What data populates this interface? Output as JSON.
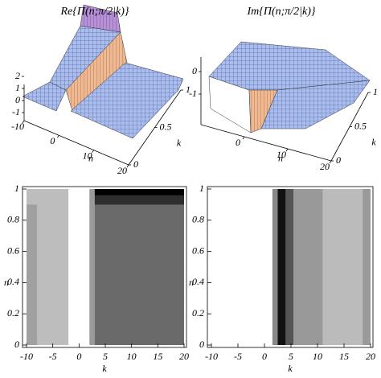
{
  "chart_data": [
    {
      "type": "surface3d",
      "title": "Re{Π(n;π/2|k)}",
      "xlabel": "n",
      "ylabel": "k",
      "xlim": [
        -10,
        20
      ],
      "ylim": [
        0,
        1
      ],
      "zlim": [
        -1,
        2
      ],
      "xticks": [
        -10,
        0,
        10,
        20
      ],
      "yticks": [
        0,
        0.5,
        1
      ],
      "zticks": [
        -1,
        0,
        1,
        2
      ]
    },
    {
      "type": "surface3d",
      "title": "Im{Π(n;π/2|k)}",
      "xlabel": "n",
      "ylabel": "k",
      "xlim": [
        -10,
        20
      ],
      "ylim": [
        0,
        1
      ],
      "zlim": [
        -2,
        1
      ],
      "xticks": [
        0,
        10,
        20
      ],
      "yticks": [
        0,
        0.5,
        1
      ],
      "zticks": [
        -1,
        0
      ]
    },
    {
      "type": "contour",
      "xlabel": "k",
      "ylabel": "n",
      "xlim": [
        -10,
        20
      ],
      "ylim": [
        0,
        1
      ],
      "xticks": [
        -10,
        -5,
        0,
        5,
        10,
        15,
        20
      ],
      "yticks": [
        0,
        0.2,
        0.4,
        0.6,
        0.8,
        1
      ],
      "regions": [
        {
          "x0": -10,
          "x1": -2,
          "y0": 0,
          "y1": 1,
          "color": "#bdbdbd"
        },
        {
          "x0": -10,
          "x1": -8,
          "y0": 0,
          "y1": 0.9,
          "color": "#a0a0a0"
        },
        {
          "x0": -2,
          "x1": 2,
          "y0": 0,
          "y1": 1,
          "color": "#ffffff"
        },
        {
          "x0": 2,
          "x1": 20,
          "y0": 0,
          "y1": 1,
          "color": "#6a6a6a"
        },
        {
          "x0": 2,
          "x1": 3,
          "y0": 0,
          "y1": 1,
          "color": "#9a9a9a"
        },
        {
          "x0": 3,
          "x1": 20,
          "y0": 0.9,
          "y1": 1,
          "color": "#2e2e2e"
        },
        {
          "x0": 3,
          "x1": 20,
          "y0": 0.96,
          "y1": 1,
          "color": "#000000"
        }
      ]
    },
    {
      "type": "contour",
      "xlabel": "k",
      "ylabel": "n",
      "xlim": [
        -10,
        20
      ],
      "ylim": [
        0,
        1
      ],
      "xticks": [
        -10,
        -5,
        0,
        5,
        10,
        15,
        20
      ],
      "yticks": [
        0,
        0.2,
        0.4,
        0.6,
        0.8,
        1
      ],
      "regions": [
        {
          "x0": -10,
          "x1": 1.5,
          "y0": 0,
          "y1": 1,
          "color": "#ffffff"
        },
        {
          "x0": 1.5,
          "x1": 2.5,
          "y0": 0,
          "y1": 1,
          "color": "#888888"
        },
        {
          "x0": 2.5,
          "x1": 4,
          "y0": 0,
          "y1": 1,
          "color": "#111111"
        },
        {
          "x0": 4,
          "x1": 5.5,
          "y0": 0,
          "y1": 1,
          "color": "#555555"
        },
        {
          "x0": 5.5,
          "x1": 11,
          "y0": 0,
          "y1": 1,
          "color": "#999999"
        },
        {
          "x0": 11,
          "x1": 18.5,
          "y0": 0,
          "y1": 1,
          "color": "#bbbbbb"
        },
        {
          "x0": 18.5,
          "x1": 20,
          "y0": 0,
          "y1": 1,
          "color": "#999999"
        }
      ]
    }
  ]
}
